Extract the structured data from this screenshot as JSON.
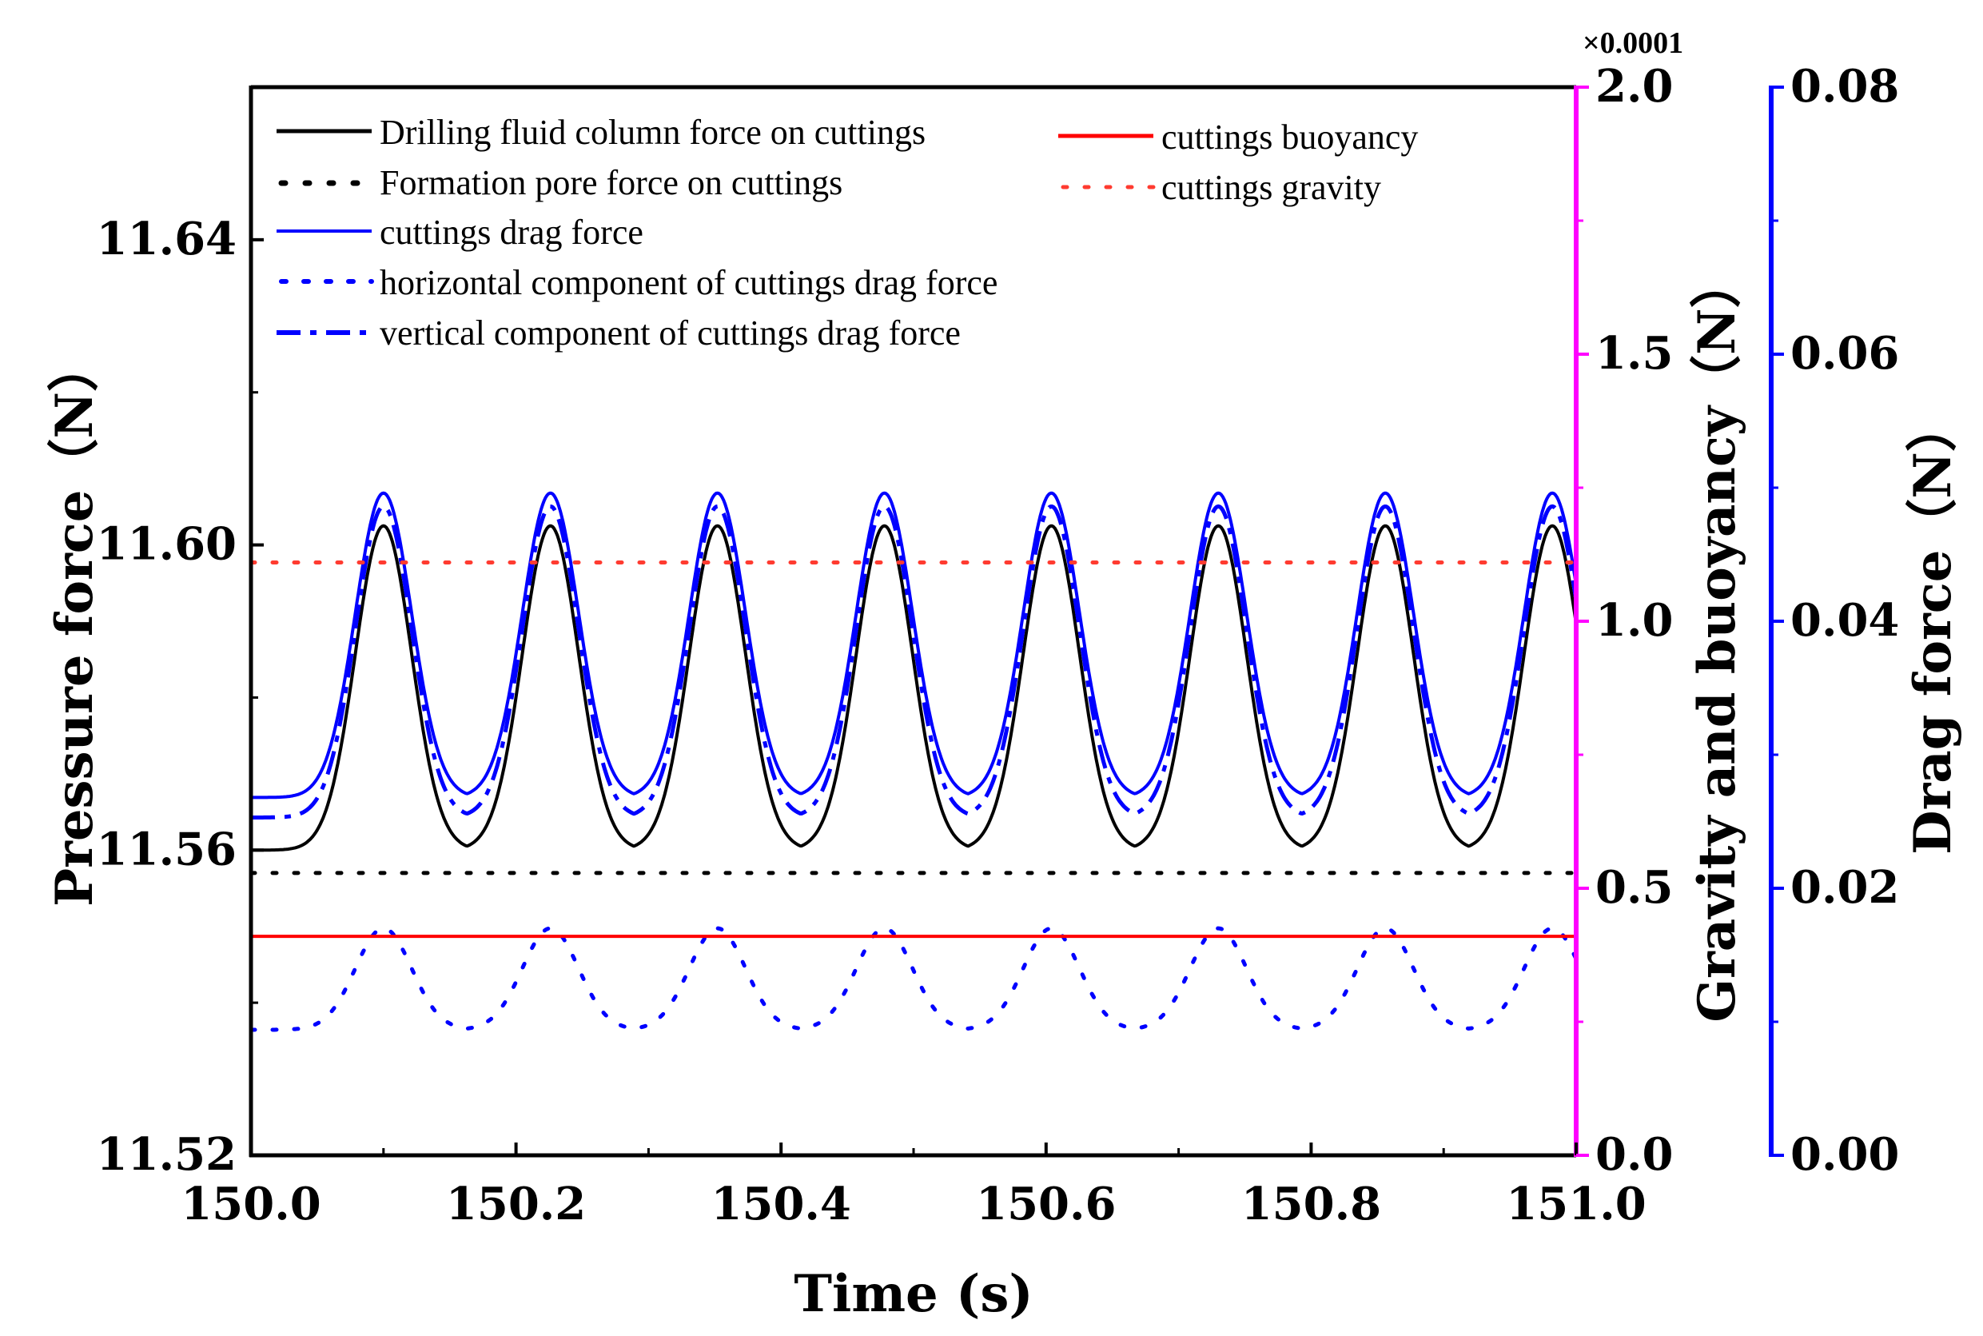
{
  "chart_data": {
    "type": "line",
    "title": "",
    "xlabel": "Time (s)",
    "xlim": [
      150.0,
      151.0
    ],
    "x_ticks": [
      "150.0",
      "150.2",
      "150.4",
      "150.6",
      "150.8",
      "151.0"
    ],
    "y_axes": {
      "left": {
        "label": "Pressure force（N）",
        "ylim": [
          11.52,
          11.66
        ],
        "ticks": [
          "11.52",
          "11.56",
          "11.60",
          "11.64"
        ],
        "color": "#000000"
      },
      "right1": {
        "label": "Gravity and buoyancy（N）",
        "ylim": [
          0.0,
          2.0
        ],
        "multiplier": "×0.0001",
        "ticks": [
          "0.0",
          "0.5",
          "1.0",
          "1.5",
          "2.0"
        ],
        "color": "#ff00ff"
      },
      "right2": {
        "label": "Drag force（N）",
        "ylim": [
          0.0,
          0.08
        ],
        "ticks": [
          "0.00",
          "0.02",
          "0.04",
          "0.06",
          "0.08"
        ],
        "color": "#0000ff"
      }
    },
    "period_s": 0.126,
    "peak_times": [
      150.1,
      150.226,
      150.352,
      150.478,
      150.604,
      150.73,
      150.856,
      150.982
    ],
    "series": [
      {
        "name": "Drilling fluid column force on cuttings",
        "axis": "left",
        "style": "solid",
        "color": "#000000",
        "shape": "periodic",
        "min": 11.56,
        "max": 11.6025
      },
      {
        "name": "Formation pore force on cuttings",
        "axis": "left",
        "style": "dotted",
        "color": "#000000",
        "shape": "constant",
        "value": 11.557
      },
      {
        "name": "cuttings drag force",
        "axis": "right2",
        "style": "solid",
        "color": "#0000ff",
        "shape": "periodic",
        "min": 0.0268,
        "max": 0.0496
      },
      {
        "name": "horizontal component of cuttings drag force",
        "axis": "right2",
        "style": "dotted",
        "color": "#0000ff",
        "shape": "periodic",
        "min": 0.0094,
        "max": 0.017
      },
      {
        "name": "vertical component of  cuttings drag force",
        "axis": "right2",
        "style": "dashdot",
        "color": "#0000ff",
        "shape": "periodic",
        "min": 0.0253,
        "max": 0.0486
      },
      {
        "name": "cuttings buoyancy",
        "axis": "right1",
        "style": "solid",
        "color": "#ff0000",
        "shape": "constant",
        "value": 0.41
      },
      {
        "name": "cuttings gravity",
        "axis": "right1",
        "style": "dotted",
        "color": "#ff3b30",
        "shape": "constant",
        "value": 1.11
      }
    ]
  }
}
